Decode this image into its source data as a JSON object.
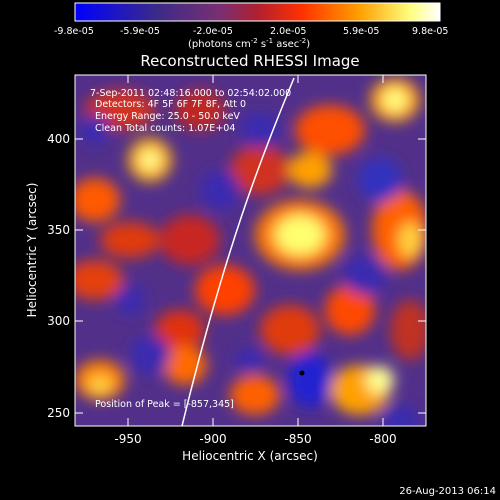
{
  "figure": {
    "title": "Reconstructed RHESSI Image",
    "xlabel": "Heliocentric X (arcsec)",
    "ylabel": "Heliocentric Y (arcsec)",
    "footer_timestamp": "26-Aug-2013 06:14"
  },
  "colorbar": {
    "tick_labels": [
      "-9.8e-05",
      "-5.9e-05",
      "-2.0e-05",
      "2.0e-05",
      "5.9e-05",
      "9.8e-05"
    ],
    "units_main": "(photons cm",
    "units_exp1": "-2",
    "units_mid1": " s",
    "units_exp2": "-1",
    "units_mid2": " asec",
    "units_exp3": "-2",
    "units_end": ")",
    "colors": [
      "#0000ff",
      "#4a2a88",
      "#7a2f72",
      "#c02020",
      "#ff4a00",
      "#ffa000",
      "#ffff90",
      "#ffffff"
    ]
  },
  "overlay": {
    "time_range": "7-Sep-2011 02:48:16.000 to 02:54:02.000",
    "detectors": "Detectors: 4F 5F 6F 7F 8F, Att 0",
    "energy": "Energy Range: 25.0 - 50.0 keV",
    "clean": "Clean    Total counts: 1.07E+04",
    "peak": "Position of Peak = [-857,345]"
  },
  "axes": {
    "x_ticks": [
      "-950",
      "-900",
      "-850",
      "-800"
    ],
    "y_ticks": [
      "250",
      "300",
      "350",
      "400"
    ],
    "x_range": [
      -975,
      -790
    ],
    "y_range": [
      243,
      432
    ]
  }
}
